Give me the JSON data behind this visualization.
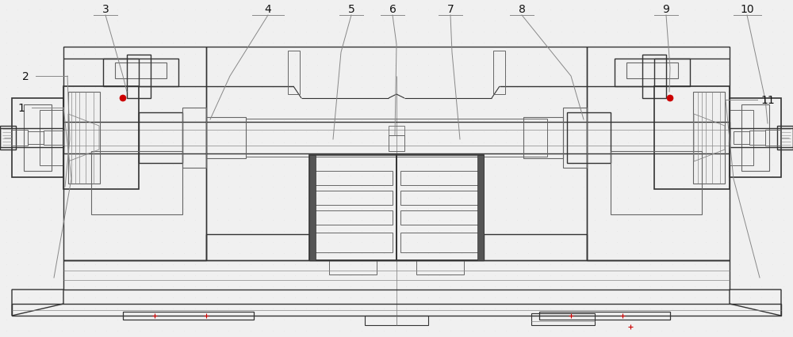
{
  "background_color": "#f0f0f0",
  "line_color": "#666666",
  "dark_line_color": "#333333",
  "mid_line_color": "#888888",
  "red_color": "#cc0000",
  "fig_width": 10.0,
  "fig_height": 4.27,
  "label_font_size": 10
}
